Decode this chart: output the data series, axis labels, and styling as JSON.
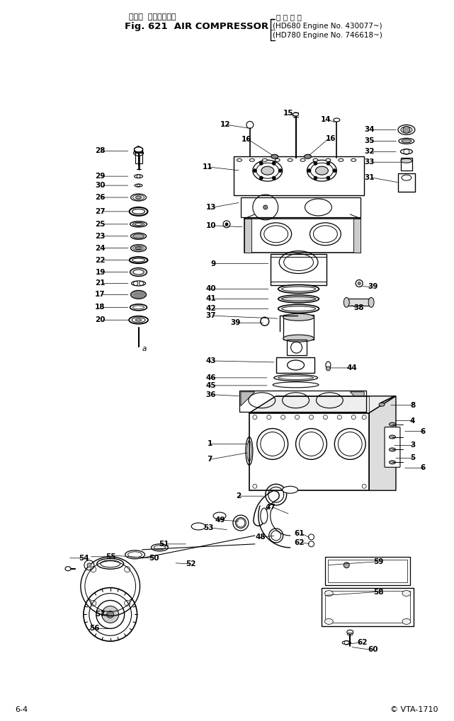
{
  "title_jp": "エアー  コンプレッサ",
  "title_en": "Fig. 621  AIR COMPRESSOR",
  "title_right1": "適 用 号 機",
  "title_right2": "HD680 Engine No. 430077~",
  "title_right3": "HD780 Engine No. 746618~",
  "footer_left": "6-4",
  "footer_right": "© VTA-1710",
  "bg_color": "#ffffff",
  "fig_width": 6.41,
  "fig_height": 10.19,
  "dpi": 100
}
